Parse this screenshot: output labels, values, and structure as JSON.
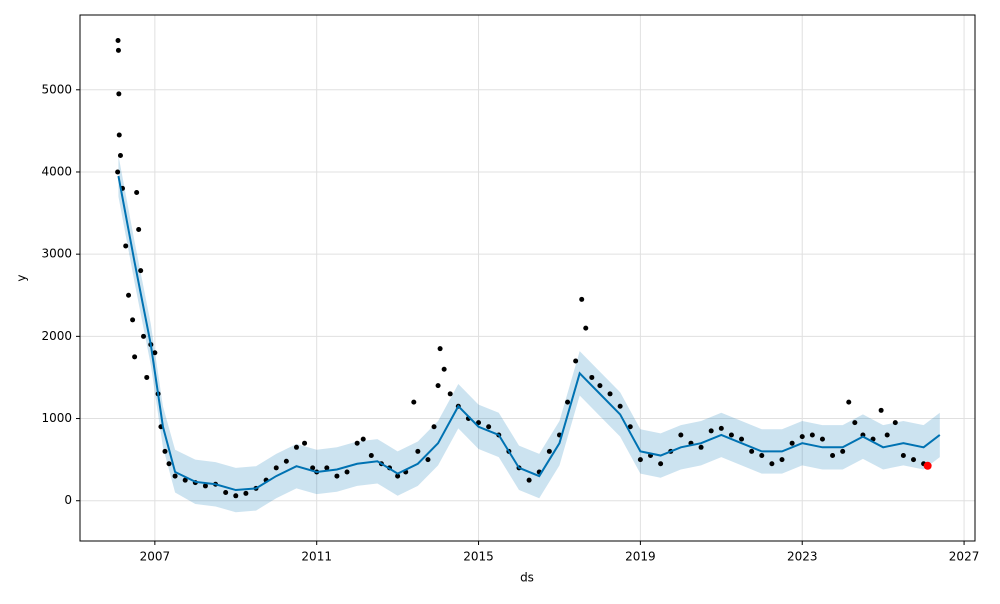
{
  "chart_data": {
    "type": "forecast",
    "xlabel": "ds",
    "ylabel": "y",
    "xlim": [
      2005.15,
      2027.27
    ],
    "ylim": [
      -490,
      5910
    ],
    "xticks": [
      2007,
      2011,
      2015,
      2019,
      2023,
      2027
    ],
    "yticks": [
      0,
      1000,
      2000,
      3000,
      4000,
      5000
    ],
    "grid": true,
    "series": [
      {
        "type": "band",
        "color": "#0072B2",
        "x": [
          2006.1,
          2006.5,
          2006.9,
          2007.2,
          2007.5,
          2008,
          2008.5,
          2009,
          2009.5,
          2010,
          2010.5,
          2011,
          2011.5,
          2012,
          2012.5,
          2013,
          2013.5,
          2014,
          2014.5,
          2015,
          2015.5,
          2016,
          2016.5,
          2017,
          2017.5,
          2018,
          2018.5,
          2019,
          2019.5,
          2020,
          2020.5,
          2021,
          2021.5,
          2022,
          2022.5,
          2023,
          2023.5,
          2024,
          2024.5,
          2025,
          2025.5,
          2026,
          2026.4
        ],
        "lower": [
          3700,
          2650,
          1650,
          650,
          100,
          -40,
          -70,
          -140,
          -120,
          30,
          150,
          80,
          110,
          180,
          210,
          60,
          180,
          430,
          880,
          630,
          530,
          130,
          30,
          430,
          1280,
          1030,
          780,
          330,
          280,
          380,
          430,
          530,
          430,
          330,
          330,
          430,
          380,
          380,
          510,
          380,
          430,
          380,
          530
        ],
        "upper": [
          4200,
          3150,
          2150,
          1150,
          620,
          500,
          470,
          400,
          420,
          570,
          690,
          620,
          650,
          720,
          750,
          600,
          720,
          970,
          1420,
          1170,
          1070,
          670,
          570,
          970,
          1820,
          1570,
          1320,
          870,
          820,
          920,
          970,
          1070,
          970,
          870,
          870,
          970,
          920,
          920,
          1050,
          920,
          970,
          920,
          1070
        ]
      },
      {
        "type": "scatter",
        "color": "#000000",
        "x": [
          2006.08,
          2006.09,
          2006.1,
          2006.11,
          2006.12,
          2006.15,
          2006.2,
          2006.28,
          2006.35,
          2006.45,
          2006.5,
          2006.55,
          2006.6,
          2006.65,
          2006.72,
          2006.8,
          2006.9,
          2007.0,
          2007.08,
          2007.15,
          2007.25,
          2007.35,
          2007.5,
          2007.75,
          2008.0,
          2008.25,
          2008.5,
          2008.75,
          2009.0,
          2009.25,
          2009.5,
          2009.75,
          2010.0,
          2010.25,
          2010.5,
          2010.7,
          2010.9,
          2011.0,
          2011.25,
          2011.5,
          2011.75,
          2012.0,
          2012.15,
          2012.35,
          2012.6,
          2012.8,
          2013.0,
          2013.2,
          2013.4,
          2013.5,
          2013.75,
          2013.9,
          2014.0,
          2014.05,
          2014.15,
          2014.3,
          2014.5,
          2014.75,
          2015.0,
          2015.25,
          2015.5,
          2015.75,
          2016.0,
          2016.25,
          2016.5,
          2016.75,
          2017.0,
          2017.2,
          2017.4,
          2017.55,
          2017.65,
          2017.8,
          2018.0,
          2018.25,
          2018.5,
          2018.75,
          2019.0,
          2019.25,
          2019.5,
          2019.75,
          2020.0,
          2020.25,
          2020.5,
          2020.75,
          2021.0,
          2021.25,
          2021.5,
          2021.75,
          2022.0,
          2022.25,
          2022.5,
          2022.75,
          2023.0,
          2023.25,
          2023.5,
          2023.75,
          2024.0,
          2024.15,
          2024.3,
          2024.5,
          2024.75,
          2024.95,
          2025.1,
          2025.3,
          2025.5,
          2025.75,
          2026.0
        ],
        "values": [
          4000,
          5600,
          5480,
          4950,
          4450,
          4200,
          3800,
          3100,
          2500,
          2200,
          1750,
          3750,
          3300,
          2800,
          2000,
          1500,
          1900,
          1800,
          1300,
          900,
          600,
          450,
          300,
          250,
          220,
          180,
          200,
          100,
          60,
          90,
          150,
          250,
          400,
          480,
          650,
          700,
          400,
          350,
          400,
          300,
          350,
          700,
          750,
          550,
          450,
          400,
          300,
          350,
          1200,
          600,
          500,
          900,
          1400,
          1850,
          1600,
          1300,
          1150,
          1000,
          950,
          900,
          800,
          600,
          400,
          250,
          350,
          600,
          800,
          1200,
          1700,
          2450,
          2100,
          1500,
          1400,
          1300,
          1150,
          900,
          500,
          550,
          450,
          600,
          800,
          700,
          650,
          850,
          880,
          800,
          750,
          600,
          550,
          450,
          500,
          700,
          780,
          800,
          750,
          550,
          600,
          1200,
          950,
          800,
          750,
          1100,
          800,
          950,
          550,
          500,
          450
        ]
      },
      {
        "type": "line",
        "color": "#0072B2",
        "x": [
          2006.1,
          2006.5,
          2006.9,
          2007.2,
          2007.5,
          2008,
          2008.5,
          2009,
          2009.5,
          2010,
          2010.5,
          2011,
          2011.5,
          2012,
          2012.5,
          2013,
          2013.5,
          2014,
          2014.5,
          2015,
          2015.5,
          2016,
          2016.5,
          2017,
          2017.5,
          2018,
          2018.5,
          2019,
          2019.5,
          2020,
          2020.5,
          2021,
          2021.5,
          2022,
          2022.5,
          2023,
          2023.5,
          2024,
          2024.5,
          2025,
          2025.5,
          2026,
          2026.4
        ],
        "values": [
          3950,
          2900,
          1900,
          900,
          350,
          230,
          200,
          130,
          150,
          300,
          420,
          350,
          380,
          450,
          480,
          330,
          450,
          700,
          1150,
          900,
          800,
          400,
          300,
          700,
          1550,
          1300,
          1050,
          600,
          550,
          650,
          700,
          800,
          700,
          600,
          600,
          700,
          650,
          650,
          780,
          650,
          700,
          650,
          800
        ]
      },
      {
        "type": "scatter",
        "color": "#ff0000",
        "x": [
          2026.1
        ],
        "values": [
          425
        ]
      }
    ]
  }
}
